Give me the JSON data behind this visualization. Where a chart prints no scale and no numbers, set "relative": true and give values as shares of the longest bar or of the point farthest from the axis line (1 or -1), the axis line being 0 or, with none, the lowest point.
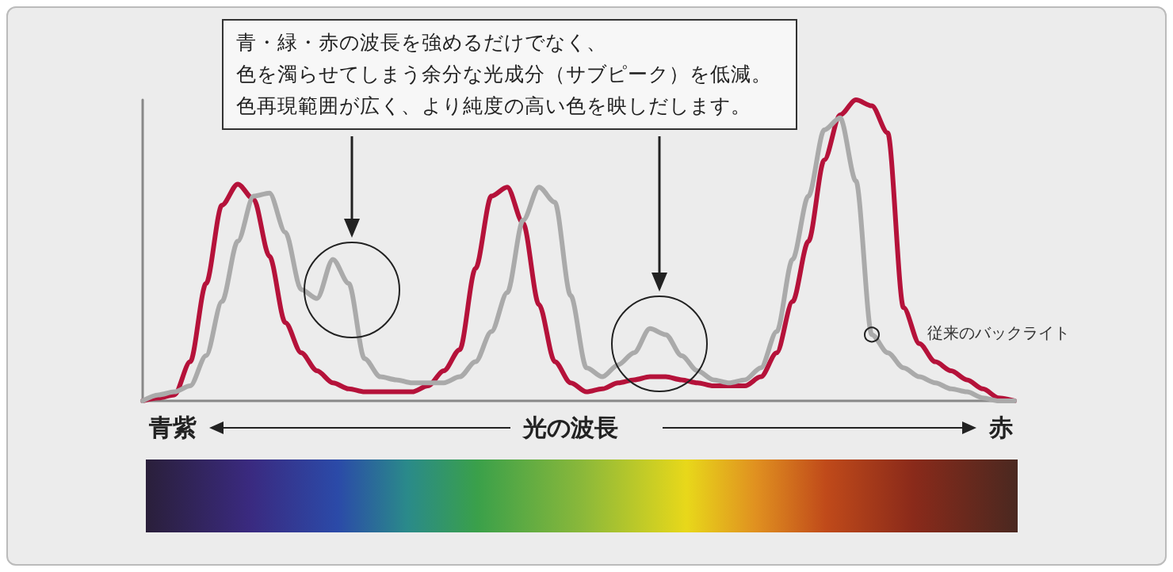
{
  "chart_data": {
    "type": "line",
    "relative": true,
    "legend": false,
    "grid": false,
    "marker": "none",
    "line_style": "solid",
    "categories": [
      null,
      null,
      null,
      null,
      null,
      null,
      null,
      null,
      null,
      null,
      null,
      null,
      null,
      null,
      null,
      null,
      null,
      null,
      null,
      null,
      null,
      null,
      null,
      null,
      null,
      null,
      null,
      null,
      null,
      null,
      null,
      null,
      null,
      null,
      null,
      null,
      null,
      null,
      null,
      null,
      null,
      null,
      null,
      null,
      null,
      null,
      null,
      null,
      null,
      null,
      null,
      null,
      null,
      null,
      null,
      null
    ],
    "series": [
      {
        "name": "従来のバックライト",
        "color": "#aaaaaa",
        "values": [
          0,
          0.02,
          0.03,
          0.05,
          0.15,
          0.33,
          0.53,
          0.68,
          0.69,
          0.56,
          0.37,
          0.34,
          0.47,
          0.39,
          0.14,
          0.08,
          0.07,
          0.06,
          0.06,
          0.06,
          0.08,
          0.13,
          0.23,
          0.36,
          0.6,
          0.71,
          0.66,
          0.35,
          0.11,
          0.08,
          0.12,
          0.16,
          0.24,
          0.22,
          0.15,
          0.1,
          0.07,
          0.06,
          0.07,
          0.11,
          0.23,
          0.47,
          0.68,
          0.9,
          0.94,
          0.73,
          0.22,
          0.16,
          0.11,
          0.08,
          0.06,
          0.04,
          0.03,
          0.01,
          0,
          0
        ]
      },
      {
        "color": "#b5123a",
        "values": [
          0,
          0.01,
          0.02,
          0.13,
          0.39,
          0.65,
          0.72,
          0.67,
          0.48,
          0.26,
          0.16,
          0.1,
          0.06,
          0.04,
          0.03,
          0.03,
          0.03,
          0.03,
          0.05,
          0.1,
          0.17,
          0.44,
          0.68,
          0.71,
          0.59,
          0.32,
          0.13,
          0.06,
          0.03,
          0.04,
          0.06,
          0.07,
          0.08,
          0.08,
          0.07,
          0.06,
          0.05,
          0.05,
          0.05,
          0.08,
          0.16,
          0.33,
          0.53,
          0.8,
          0.95,
          1,
          0.98,
          0.89,
          0.31,
          0.19,
          0.13,
          0.1,
          0.07,
          0.04,
          0.01,
          0
        ]
      }
    ],
    "annotations": [
      "青・緑・赤の波長を強めるだけでなく、",
      "色を濁らせてしまう余分な光成分（サブピーク）を低減。",
      "色再現範囲が広く、より純度の高い色を映しだします。",
      "青紫",
      "光の波長",
      "赤"
    ]
  }
}
